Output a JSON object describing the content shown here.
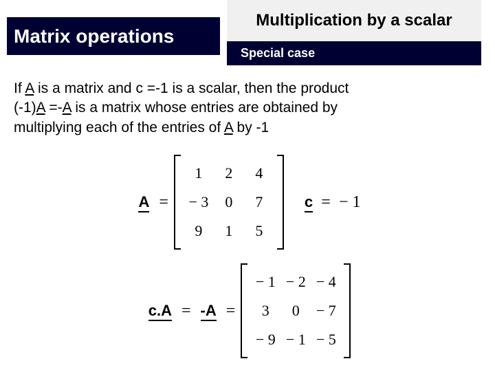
{
  "header": {
    "left_title": "Matrix operations",
    "right_top": "Multiplication by a scalar",
    "right_bottom": "Special case"
  },
  "body": {
    "line1_a": "If ",
    "line1_b": " is a matrix and c =-1 is a scalar, then the product",
    "line2_a": "(-1)",
    "line2_b": " =-",
    "line2_c": " is a matrix whose entries are obtained by",
    "line3": "multiplying each of the entries of ",
    "line3_b": " by -1",
    "A": "A"
  },
  "eq1": {
    "labelA": "A",
    "matrixA": {
      "cols": 3,
      "cells": [
        "1",
        "2",
        "4",
        "− 3",
        "0",
        "7",
        "9",
        "1",
        "5"
      ]
    },
    "scalar_label": "c",
    "scalar_eq": "=",
    "scalar_val": "− 1"
  },
  "eq2": {
    "label_cA": "c.A",
    "label_negA": "-A",
    "matrixB": {
      "cols": 3,
      "cells": [
        "− 1",
        "− 2",
        "− 4",
        "3",
        "0",
        "− 7",
        "− 9",
        "− 1",
        "− 5"
      ]
    }
  },
  "colors": {
    "dark": "#000033",
    "light_gray": "#f0f0f0"
  }
}
